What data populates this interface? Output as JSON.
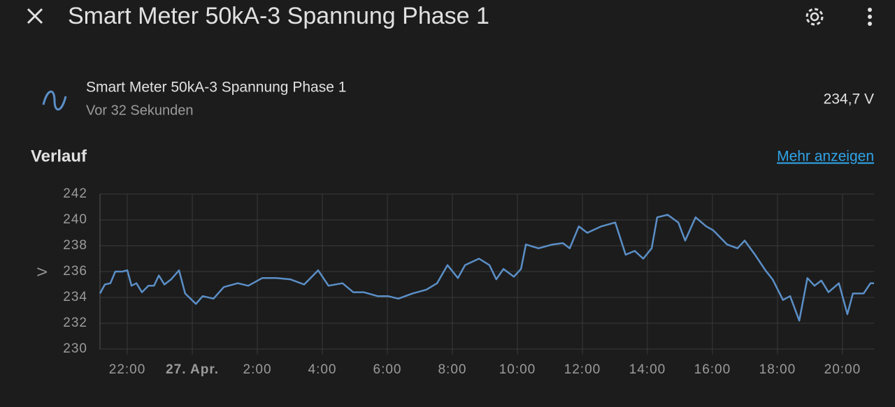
{
  "header": {
    "title": "Smart Meter 50kA-3 Spannung Phase 1"
  },
  "entity": {
    "name": "Smart Meter 50kA-3 Spannung Phase 1",
    "last_changed": "Vor 32 Sekunden",
    "state": "234,7 V"
  },
  "history": {
    "title": "Verlauf",
    "link": "Mehr anzeigen"
  },
  "chart_data": {
    "type": "line",
    "ylabel": "V",
    "color": "#5b8fc7",
    "grid": true,
    "xlim": [
      -2.84,
      20.97
    ],
    "ylim": [
      230,
      242
    ],
    "yticks": [
      230,
      232,
      234,
      236,
      238,
      240,
      242
    ],
    "xticks": [
      {
        "value": -2,
        "label": "22:00"
      },
      {
        "value": 0,
        "label": "27. Apr."
      },
      {
        "value": 2,
        "label": "2:00"
      },
      {
        "value": 4,
        "label": "4:00"
      },
      {
        "value": 6,
        "label": "6:00"
      },
      {
        "value": 8,
        "label": "8:00"
      },
      {
        "value": 10,
        "label": "10:00"
      },
      {
        "value": 12,
        "label": "12:00"
      },
      {
        "value": 14,
        "label": "14:00"
      },
      {
        "value": 16,
        "label": "16:00"
      },
      {
        "value": 18,
        "label": "18:00"
      },
      {
        "value": 20,
        "label": "20:00"
      }
    ],
    "x": [
      -2.84,
      -2.69,
      -2.52,
      -2.37,
      -2.15,
      -2.0,
      -1.87,
      -1.72,
      -1.55,
      -1.35,
      -1.18,
      -1.03,
      -0.86,
      -0.65,
      -0.41,
      -0.22,
      0.11,
      0.32,
      0.65,
      0.97,
      1.4,
      1.72,
      2.15,
      2.58,
      3.01,
      3.44,
      3.87,
      4.19,
      4.62,
      4.95,
      5.27,
      5.7,
      6.02,
      6.34,
      6.77,
      7.2,
      7.53,
      7.85,
      8.17,
      8.39,
      8.82,
      9.14,
      9.35,
      9.57,
      9.89,
      10.11,
      10.26,
      10.65,
      11.08,
      11.4,
      11.61,
      11.89,
      12.15,
      12.58,
      13.01,
      13.33,
      13.61,
      13.87,
      14.13,
      14.3,
      14.62,
      14.95,
      15.16,
      15.48,
      15.81,
      16.02,
      16.45,
      16.77,
      16.99,
      17.31,
      17.63,
      17.85,
      18.17,
      18.39,
      18.67,
      18.92,
      19.14,
      19.35,
      19.57,
      19.89,
      20.15,
      20.32,
      20.65,
      20.86,
      20.97
    ],
    "values": [
      234.3,
      235.0,
      235.1,
      236.0,
      236.0,
      236.1,
      234.9,
      235.1,
      234.4,
      234.9,
      234.9,
      235.7,
      235.0,
      235.4,
      236.1,
      234.3,
      233.5,
      234.1,
      233.9,
      234.8,
      235.1,
      234.9,
      235.5,
      235.5,
      235.4,
      235.0,
      236.1,
      234.9,
      235.1,
      234.4,
      234.4,
      234.1,
      234.1,
      233.9,
      234.3,
      234.6,
      235.1,
      236.5,
      235.5,
      236.5,
      237.0,
      236.5,
      235.4,
      236.2,
      235.6,
      236.2,
      238.1,
      237.8,
      238.1,
      238.2,
      237.8,
      239.5,
      239.0,
      239.5,
      239.8,
      237.3,
      237.6,
      237.0,
      237.8,
      240.2,
      240.4,
      239.8,
      238.4,
      240.2,
      239.5,
      239.2,
      238.1,
      237.8,
      238.4,
      237.3,
      236.1,
      235.4,
      233.8,
      234.1,
      232.2,
      235.5,
      234.9,
      235.3,
      234.4,
      235.1,
      232.7,
      234.3,
      234.3,
      235.1,
      235.1
    ]
  }
}
